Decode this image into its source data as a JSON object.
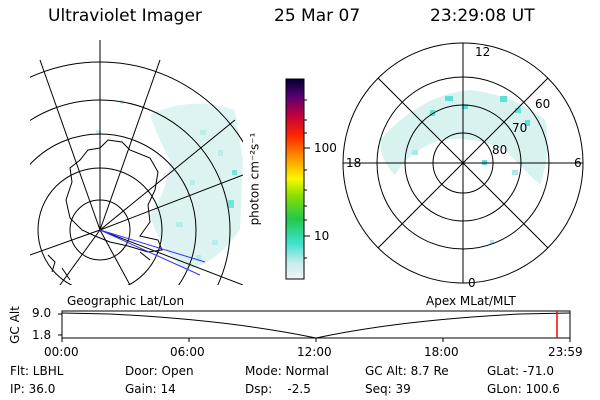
{
  "header": {
    "instrument": "Ultraviolet Imager",
    "date": "25 Mar 07",
    "time": "23:29:08 UT"
  },
  "colorbar": {
    "unit_label": "photon cm⁻²s⁻¹",
    "ticks": [
      "100",
      "10"
    ],
    "scale": "log"
  },
  "panels": {
    "geographic_label": "Geographic Lat/Lon",
    "apex_label": "Apex MLat/MLT"
  },
  "polar_plot": {
    "mlt_labels": {
      "top": "12",
      "left": "18",
      "right": "6",
      "bottom": "0"
    },
    "lat_labels": [
      "60",
      "70",
      "80"
    ]
  },
  "altitude_plot": {
    "ylabel": "GC Alt",
    "yticks": [
      "9.0",
      "1.8"
    ],
    "xticks": [
      "00:00",
      "06:00",
      "12:00",
      "18:00",
      "23:59"
    ],
    "current_marker_color": "#ff0000"
  },
  "status": {
    "filter": "Flt: LBHL",
    "door": "Door: Open",
    "mode": "Mode: Normal",
    "gc_alt": "GC Alt: 8.7 Re",
    "glat": "GLat: -71.0",
    "ip": "IP: 36.0",
    "gain": "Gain: 14",
    "dsp": "Dsp:    -2.5",
    "seq": "Seq: 39",
    "glon": "GLon: 100.6"
  }
}
